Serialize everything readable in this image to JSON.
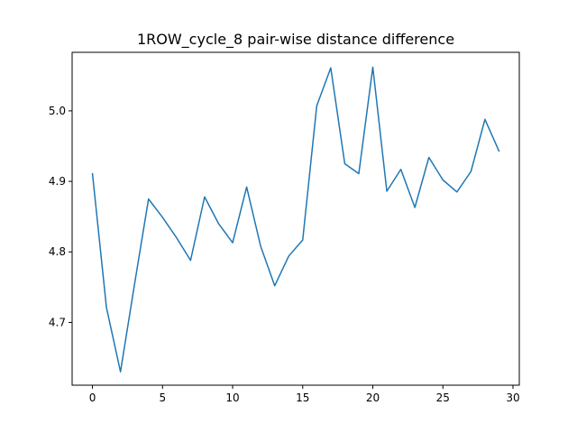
{
  "chart_data": {
    "type": "line",
    "title": "1ROW_cycle_8 pair-wise distance difference",
    "xlabel": "",
    "ylabel": "",
    "xlim": [
      -1.45,
      30.45
    ],
    "ylim": [
      4.611,
      5.083
    ],
    "xticks": [
      0,
      5,
      10,
      15,
      20,
      25,
      30
    ],
    "yticks": [
      4.7,
      4.8,
      4.9,
      5.0
    ],
    "grid": false,
    "legend": "none",
    "series": [
      {
        "color": "#1f77b4",
        "x": [
          0,
          1,
          2,
          3,
          4,
          5,
          6,
          7,
          8,
          9,
          10,
          11,
          12,
          13,
          14,
          15,
          16,
          17,
          18,
          19,
          20,
          21,
          22,
          23,
          24,
          25,
          26,
          27,
          28,
          29
        ],
        "values": [
          4.911,
          4.721,
          4.63,
          4.754,
          4.875,
          4.849,
          4.82,
          4.788,
          4.878,
          4.84,
          4.813,
          4.892,
          4.808,
          4.752,
          4.794,
          4.817,
          5.007,
          5.061,
          4.925,
          4.911,
          5.062,
          4.886,
          4.917,
          4.863,
          4.934,
          4.902,
          4.885,
          4.914,
          4.988,
          4.943
        ]
      }
    ]
  }
}
